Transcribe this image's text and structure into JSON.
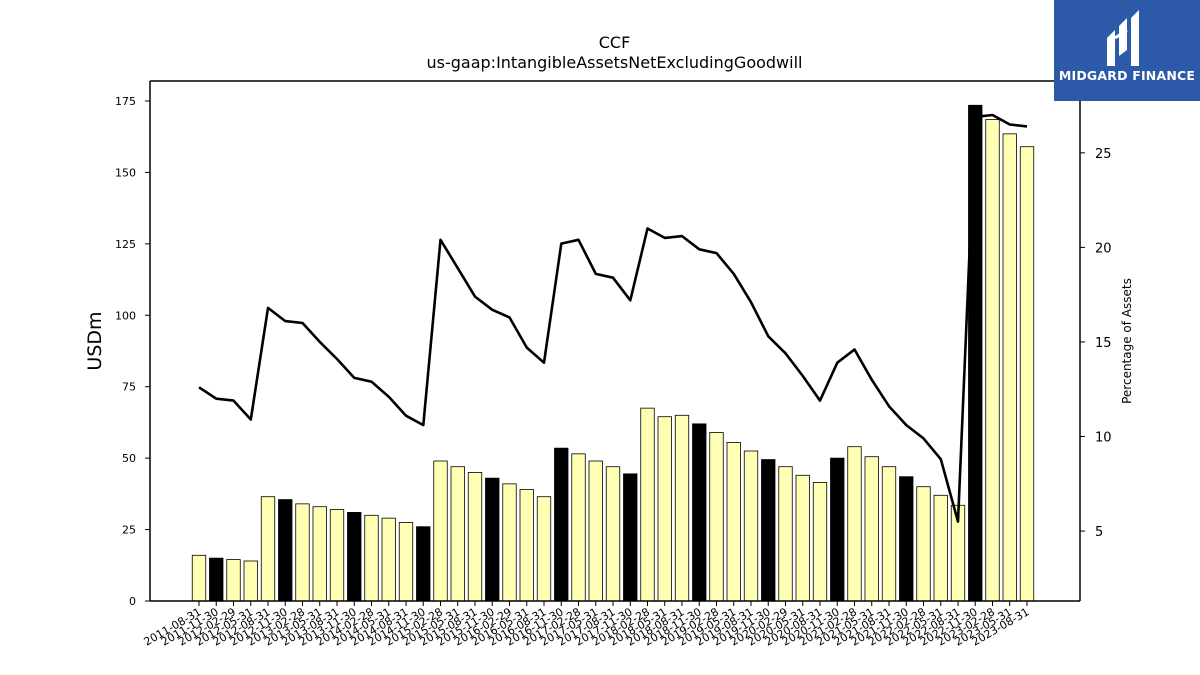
{
  "brand": {
    "name": "MIDGARD FINANCE"
  },
  "chart_data": {
    "type": "bar",
    "title": "CCF",
    "subtitle": "us-gaap:IntangibleAssetsNetExcludingGoodwill",
    "ylabel": "USDm",
    "y2label": "Percentage of Assets",
    "ylim": [
      0,
      182
    ],
    "y2lim": [
      1.3,
      28.8
    ],
    "yticks": [
      0,
      25,
      50,
      75,
      100,
      125,
      150,
      175
    ],
    "y2ticks": [
      5,
      10,
      15,
      20,
      25
    ],
    "colors": {
      "bar": "#ffffb3",
      "bar_highlight": "#000000",
      "edge": "#000000",
      "line": "#000000"
    },
    "categories": [
      "2011-08-31",
      "2011-11-30",
      "2012-02-29",
      "2012-05-31",
      "2012-08-31",
      "2012-11-30",
      "2013-02-28",
      "2013-05-31",
      "2013-08-31",
      "2013-11-30",
      "2014-02-28",
      "2014-05-31",
      "2014-08-31",
      "2014-11-30",
      "2015-02-28",
      "2015-05-31",
      "2015-08-31",
      "2015-11-30",
      "2016-02-29",
      "2016-05-31",
      "2016-08-31",
      "2016-11-30",
      "2017-02-28",
      "2017-05-31",
      "2017-08-31",
      "2017-11-30",
      "2018-02-28",
      "2018-05-31",
      "2018-08-31",
      "2018-11-30",
      "2019-02-28",
      "2019-05-31",
      "2019-08-31",
      "2019-11-30",
      "2020-02-29",
      "2020-05-31",
      "2020-08-31",
      "2020-11-30",
      "2021-02-28",
      "2021-05-31",
      "2021-08-31",
      "2021-11-30",
      "2022-02-28",
      "2022-05-31",
      "2022-08-31",
      "2022-11-30",
      "2023-02-28",
      "2023-05-31",
      "2023-08-31"
    ],
    "series": [
      {
        "type": "bar",
        "values": [
          16,
          15,
          14.5,
          14,
          36.5,
          35.5,
          34,
          33,
          32,
          31,
          30,
          29,
          27.5,
          26,
          49,
          47,
          45,
          43,
          41,
          39,
          36.5,
          53.5,
          51.5,
          49,
          47,
          44.5,
          67.5,
          64.5,
          65,
          62,
          59,
          55.5,
          52.5,
          49.5,
          47,
          44,
          41.5,
          50,
          54,
          50.5,
          47,
          43.5,
          40,
          37,
          33.5,
          173.5,
          168.5,
          163.5,
          159
        ],
        "highlighted": [
          false,
          true,
          false,
          false,
          false,
          true,
          false,
          false,
          false,
          true,
          false,
          false,
          false,
          true,
          false,
          false,
          false,
          true,
          false,
          false,
          false,
          true,
          false,
          false,
          false,
          true,
          false,
          false,
          false,
          true,
          false,
          false,
          false,
          true,
          false,
          false,
          false,
          true,
          false,
          false,
          false,
          true,
          false,
          false,
          false,
          true,
          false,
          false,
          false
        ]
      },
      {
        "type": "line",
        "axis": "right",
        "values": [
          12.6,
          12,
          11.9,
          10.9,
          16.8,
          16.1,
          16,
          15,
          14.1,
          13.1,
          12.9,
          12.1,
          11.1,
          10.6,
          20.4,
          18.9,
          17.4,
          16.7,
          16.3,
          14.7,
          13.9,
          20.2,
          20.4,
          18.6,
          18.4,
          17.2,
          21,
          20.5,
          20.6,
          19.9,
          19.7,
          18.6,
          17.1,
          15.3,
          14.4,
          13.2,
          11.9,
          13.9,
          14.6,
          13,
          11.6,
          10.6,
          9.9,
          8.8,
          5.5,
          26.9,
          27,
          26.5,
          26.4
        ]
      }
    ]
  }
}
